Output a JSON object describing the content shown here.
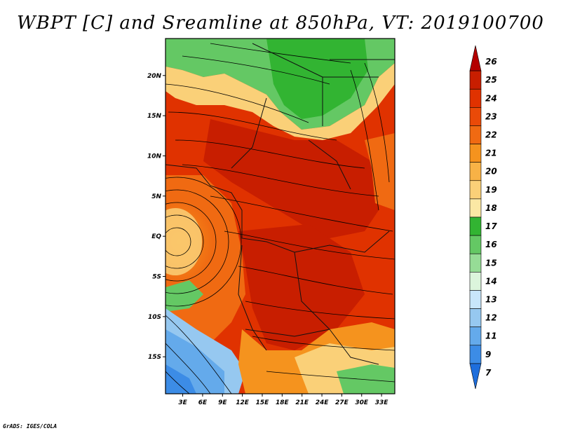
{
  "title": "WBPT [C] and Sreamline at 850hPa, VT: 2019100700",
  "footer": "GrADS: IGES/COLA",
  "map": {
    "lat_labels": [
      "20N",
      "15N",
      "10N",
      "5N",
      "EQ",
      "5S",
      "10S",
      "15S"
    ],
    "lat_values": [
      20,
      15,
      10,
      5,
      0,
      -5,
      -10,
      -15
    ],
    "lon_labels": [
      "3E",
      "6E",
      "9E",
      "12E",
      "15E",
      "18E",
      "21E",
      "24E",
      "27E",
      "30E",
      "33E"
    ],
    "lon_values": [
      3,
      6,
      9,
      12,
      15,
      18,
      21,
      24,
      27,
      30,
      33
    ],
    "lat_range": [
      -19.6,
      24.6
    ],
    "lon_range": [
      0.4,
      35.0
    ]
  },
  "colorbar": {
    "labels": [
      "26",
      "25",
      "24",
      "23",
      "22",
      "21",
      "20",
      "19",
      "18",
      "17",
      "16",
      "15",
      "14",
      "13",
      "12",
      "11",
      "9",
      "7"
    ],
    "colors": [
      "#b40000",
      "#c81e00",
      "#e03200",
      "#ea4a08",
      "#f06a12",
      "#f5931e",
      "#f8b246",
      "#fad078",
      "#fbe8a4",
      "#32b432",
      "#64c864",
      "#96dc96",
      "#dcf5dc",
      "#c8e6fa",
      "#96c8f0",
      "#64aaeb",
      "#3c8ce6",
      "#1e6edc"
    ]
  }
}
